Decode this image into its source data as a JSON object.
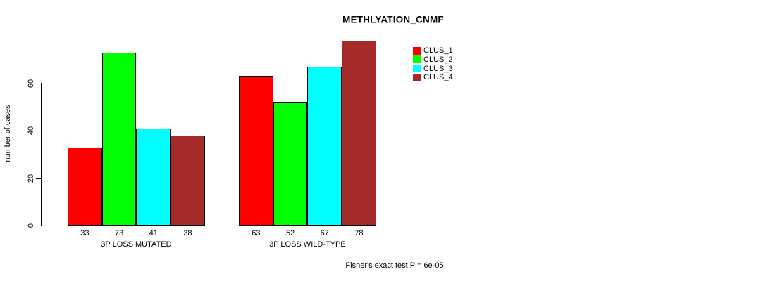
{
  "title": "METHLYATION_CNMF",
  "footer_note": "Fisher's exact test P = 6e-05",
  "chart_data": {
    "type": "bar",
    "title": "METHLYATION_CNMF",
    "xlabel": "",
    "ylabel": "number of cases",
    "ylim": [
      0,
      80
    ],
    "yticks": [
      0,
      20,
      40,
      60
    ],
    "grid": false,
    "legend_position": "top-right",
    "categories": [
      "3P LOSS MUTATED",
      "3P LOSS WILD-TYPE"
    ],
    "series": [
      {
        "name": "CLUS_1",
        "color": "#ff0000",
        "values": [
          33,
          63
        ]
      },
      {
        "name": "CLUS_2",
        "color": "#00ff00",
        "values": [
          73,
          52
        ]
      },
      {
        "name": "CLUS_3",
        "color": "#00ffff",
        "values": [
          41,
          67
        ]
      },
      {
        "name": "CLUS_4",
        "color": "#a52a2a",
        "values": [
          38,
          78
        ]
      }
    ],
    "bar_value_labels_shown": true,
    "annotation": "Fisher's exact test P = 6e-05"
  }
}
